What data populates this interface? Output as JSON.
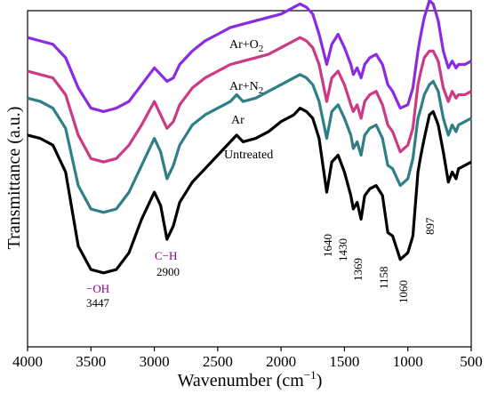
{
  "chart_data": {
    "type": "line",
    "xlabel": "Wavenumber (cm",
    "xlabel_sup": "−1",
    "xlabel_end": ")",
    "ylabel": "Transmittance (a.u.)",
    "xlim": [
      4000,
      500
    ],
    "ylim": [
      0,
      100
    ],
    "x_reversed": true,
    "x_ticks": [
      4000,
      3500,
      3000,
      2500,
      2000,
      1500,
      1000,
      500
    ],
    "y_ticks_shown": false,
    "grid": false,
    "series": [
      {
        "name": "Untreated",
        "color": "#000000",
        "points": [
          [
            4000,
            63
          ],
          [
            3900,
            62
          ],
          [
            3800,
            60
          ],
          [
            3700,
            52
          ],
          [
            3600,
            30
          ],
          [
            3500,
            23
          ],
          [
            3400,
            22
          ],
          [
            3300,
            23
          ],
          [
            3200,
            28
          ],
          [
            3100,
            38
          ],
          [
            3000,
            46
          ],
          [
            2950,
            42
          ],
          [
            2900,
            32
          ],
          [
            2850,
            36
          ],
          [
            2800,
            43
          ],
          [
            2700,
            49
          ],
          [
            2600,
            53
          ],
          [
            2500,
            57
          ],
          [
            2400,
            61
          ],
          [
            2350,
            63
          ],
          [
            2300,
            61
          ],
          [
            2200,
            62
          ],
          [
            2100,
            64
          ],
          [
            2000,
            67
          ],
          [
            1900,
            69
          ],
          [
            1850,
            71
          ],
          [
            1800,
            70
          ],
          [
            1750,
            68
          ],
          [
            1700,
            62
          ],
          [
            1640,
            46
          ],
          [
            1600,
            55
          ],
          [
            1550,
            57
          ],
          [
            1500,
            52
          ],
          [
            1450,
            45
          ],
          [
            1430,
            41
          ],
          [
            1400,
            43
          ],
          [
            1369,
            38
          ],
          [
            1340,
            45
          ],
          [
            1300,
            47
          ],
          [
            1250,
            48
          ],
          [
            1200,
            45
          ],
          [
            1158,
            34
          ],
          [
            1120,
            33
          ],
          [
            1060,
            26
          ],
          [
            1000,
            28
          ],
          [
            960,
            33
          ],
          [
            920,
            52
          ],
          [
            897,
            57
          ],
          [
            870,
            62
          ],
          [
            830,
            69
          ],
          [
            800,
            70
          ],
          [
            760,
            66
          ],
          [
            720,
            58
          ],
          [
            680,
            49
          ],
          [
            650,
            52
          ],
          [
            620,
            50
          ],
          [
            600,
            53
          ],
          [
            550,
            54
          ],
          [
            500,
            55
          ]
        ]
      },
      {
        "name": "Ar",
        "color": "#2f7f88",
        "points": [
          [
            4000,
            74
          ],
          [
            3900,
            73
          ],
          [
            3800,
            71
          ],
          [
            3700,
            65
          ],
          [
            3600,
            48
          ],
          [
            3500,
            41
          ],
          [
            3400,
            40
          ],
          [
            3300,
            41
          ],
          [
            3200,
            46
          ],
          [
            3100,
            54
          ],
          [
            3000,
            62
          ],
          [
            2950,
            58
          ],
          [
            2900,
            50
          ],
          [
            2850,
            54
          ],
          [
            2800,
            60
          ],
          [
            2700,
            66
          ],
          [
            2600,
            69
          ],
          [
            2500,
            71
          ],
          [
            2400,
            73
          ],
          [
            2350,
            75
          ],
          [
            2300,
            73
          ],
          [
            2200,
            74
          ],
          [
            2100,
            76
          ],
          [
            2000,
            78
          ],
          [
            1900,
            80
          ],
          [
            1850,
            81
          ],
          [
            1800,
            80
          ],
          [
            1750,
            78
          ],
          [
            1700,
            73
          ],
          [
            1640,
            62
          ],
          [
            1600,
            70
          ],
          [
            1550,
            72
          ],
          [
            1500,
            68
          ],
          [
            1450,
            63
          ],
          [
            1430,
            59
          ],
          [
            1400,
            61
          ],
          [
            1369,
            57
          ],
          [
            1340,
            63
          ],
          [
            1300,
            65
          ],
          [
            1250,
            66
          ],
          [
            1200,
            62
          ],
          [
            1158,
            54
          ],
          [
            1120,
            53
          ],
          [
            1060,
            48
          ],
          [
            1000,
            50
          ],
          [
            960,
            56
          ],
          [
            920,
            68
          ],
          [
            897,
            71
          ],
          [
            870,
            75
          ],
          [
            830,
            78
          ],
          [
            800,
            79
          ],
          [
            760,
            76
          ],
          [
            720,
            68
          ],
          [
            680,
            63
          ],
          [
            650,
            66
          ],
          [
            620,
            64
          ],
          [
            600,
            66
          ],
          [
            550,
            67
          ],
          [
            500,
            68
          ]
        ]
      },
      {
        "name": "Ar+N",
        "name_sub": "2",
        "color": "#cc3a86",
        "points": [
          [
            4000,
            82
          ],
          [
            3900,
            81
          ],
          [
            3800,
            80
          ],
          [
            3700,
            75
          ],
          [
            3600,
            63
          ],
          [
            3500,
            56
          ],
          [
            3400,
            55
          ],
          [
            3300,
            56
          ],
          [
            3200,
            60
          ],
          [
            3100,
            66
          ],
          [
            3000,
            73
          ],
          [
            2950,
            69
          ],
          [
            2900,
            65
          ],
          [
            2850,
            67
          ],
          [
            2800,
            72
          ],
          [
            2700,
            77
          ],
          [
            2600,
            80
          ],
          [
            2500,
            82
          ],
          [
            2400,
            84
          ],
          [
            2300,
            85
          ],
          [
            2200,
            86
          ],
          [
            2100,
            87
          ],
          [
            2000,
            89
          ],
          [
            1900,
            91
          ],
          [
            1850,
            92
          ],
          [
            1800,
            91
          ],
          [
            1750,
            89
          ],
          [
            1700,
            84
          ],
          [
            1640,
            73
          ],
          [
            1600,
            80
          ],
          [
            1550,
            82
          ],
          [
            1500,
            78
          ],
          [
            1450,
            72
          ],
          [
            1430,
            70
          ],
          [
            1400,
            72
          ],
          [
            1369,
            68
          ],
          [
            1340,
            73
          ],
          [
            1300,
            75
          ],
          [
            1250,
            76
          ],
          [
            1200,
            72
          ],
          [
            1158,
            66
          ],
          [
            1120,
            64
          ],
          [
            1060,
            58
          ],
          [
            1000,
            60
          ],
          [
            960,
            65
          ],
          [
            920,
            78
          ],
          [
            897,
            82
          ],
          [
            870,
            86
          ],
          [
            830,
            88
          ],
          [
            800,
            88
          ],
          [
            760,
            85
          ],
          [
            720,
            77
          ],
          [
            680,
            73
          ],
          [
            650,
            76
          ],
          [
            620,
            74
          ],
          [
            600,
            75
          ],
          [
            550,
            75
          ],
          [
            500,
            76
          ]
        ]
      },
      {
        "name": "Ar+O",
        "name_sub": "2",
        "color": "#8a2be2",
        "points": [
          [
            4000,
            92
          ],
          [
            3900,
            91
          ],
          [
            3800,
            90
          ],
          [
            3700,
            86
          ],
          [
            3600,
            77
          ],
          [
            3500,
            71
          ],
          [
            3400,
            70
          ],
          [
            3300,
            71
          ],
          [
            3200,
            73
          ],
          [
            3100,
            78
          ],
          [
            3000,
            83
          ],
          [
            2950,
            81
          ],
          [
            2900,
            79
          ],
          [
            2850,
            80
          ],
          [
            2800,
            84
          ],
          [
            2700,
            88
          ],
          [
            2600,
            91
          ],
          [
            2500,
            93
          ],
          [
            2400,
            95
          ],
          [
            2300,
            96
          ],
          [
            2200,
            97
          ],
          [
            2100,
            98
          ],
          [
            2000,
            99
          ],
          [
            1900,
            101
          ],
          [
            1850,
            102
          ],
          [
            1800,
            101
          ],
          [
            1750,
            99
          ],
          [
            1700,
            93
          ],
          [
            1640,
            84
          ],
          [
            1600,
            90
          ],
          [
            1550,
            93
          ],
          [
            1500,
            89
          ],
          [
            1450,
            84
          ],
          [
            1430,
            81
          ],
          [
            1400,
            83
          ],
          [
            1369,
            80
          ],
          [
            1340,
            84
          ],
          [
            1300,
            86
          ],
          [
            1250,
            87
          ],
          [
            1200,
            84
          ],
          [
            1158,
            78
          ],
          [
            1120,
            76
          ],
          [
            1060,
            71
          ],
          [
            1000,
            72
          ],
          [
            960,
            77
          ],
          [
            920,
            88
          ],
          [
            897,
            93
          ],
          [
            870,
            98
          ],
          [
            830,
            103
          ],
          [
            800,
            102
          ],
          [
            760,
            97
          ],
          [
            720,
            88
          ],
          [
            680,
            83
          ],
          [
            650,
            85
          ],
          [
            620,
            83
          ],
          [
            600,
            84
          ],
          [
            550,
            84
          ],
          [
            500,
            85
          ]
        ]
      }
    ],
    "annotations": [
      {
        "label": "−OH",
        "value": "3447",
        "color": "#800080"
      },
      {
        "label": "C−H",
        "value": "2900",
        "color": "#800080"
      },
      {
        "value": "1640"
      },
      {
        "value": "1430"
      },
      {
        "value": "1369"
      },
      {
        "value": "1158"
      },
      {
        "value": "1060"
      },
      {
        "value": "897"
      }
    ]
  }
}
